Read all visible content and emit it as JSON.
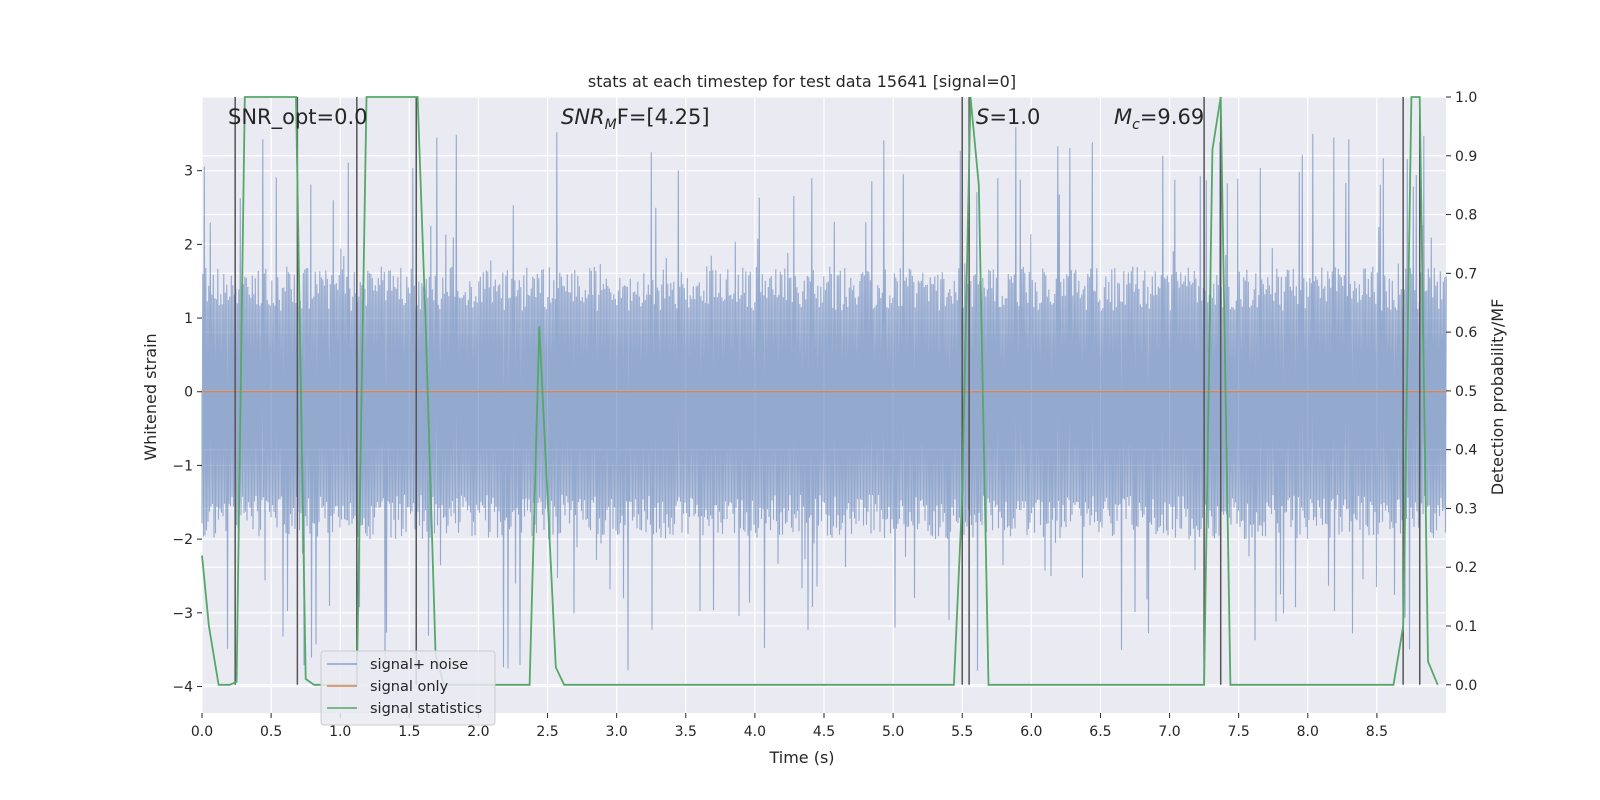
{
  "chart_data": {
    "type": "line",
    "title": "stats at each timestep for test data 15641 [signal=0]",
    "xlabel": "Time (s)",
    "ylabel": "Whitened strain",
    "y2label": "Detection probability/MF",
    "xlim": [
      0.0,
      9.0
    ],
    "ylim": [
      -4.36,
      4.0
    ],
    "y2lim": [
      -0.048,
      1.0
    ],
    "x_ticks": [
      "0.0",
      "0.5",
      "1.0",
      "1.5",
      "2.0",
      "2.5",
      "3.0",
      "3.5",
      "4.0",
      "4.5",
      "5.0",
      "5.5",
      "6.0",
      "6.5",
      "7.0",
      "7.5",
      "8.0",
      "8.5"
    ],
    "y_ticks": [
      "3",
      "2",
      "1",
      "0",
      "−1",
      "−2",
      "−3",
      "−4"
    ],
    "y2_ticks": [
      "1.0",
      "0.9",
      "0.8",
      "0.7",
      "0.6",
      "0.5",
      "0.4",
      "0.3",
      "0.2",
      "0.1",
      "0.0"
    ],
    "legend_position": "lower-left",
    "annotations": {
      "snr_opt": "SNR_opt=0.0",
      "snr_mf_sym": "SNR",
      "snr_mf_sub": "M",
      "snr_mf_tail": "F=[4.25]",
      "s_sym": "S",
      "s_tail": "=1.0",
      "mc_sym": "M",
      "mc_sub": "c",
      "mc_tail": "=9.69"
    },
    "series": [
      {
        "name": "signal+ noise",
        "color": "#4c72b0",
        "style": "noise band",
        "typical_range": [
          -1.7,
          1.4
        ],
        "peak_range": [
          -3.8,
          3.6
        ]
      },
      {
        "name": "signal only",
        "color": "#dd8452",
        "x": [
          0.0,
          9.0
        ],
        "y": [
          0.0,
          0.0
        ]
      },
      {
        "name": "signal statistics",
        "color": "#55a868",
        "axis": "right",
        "x": [
          0.0,
          0.05,
          0.12,
          0.2,
          0.25,
          0.31,
          0.44,
          0.5,
          0.56,
          0.62,
          0.68,
          0.75,
          0.81,
          0.87,
          0.94,
          1.0,
          1.06,
          1.12,
          1.19,
          1.25,
          1.31,
          1.37,
          1.44,
          1.5,
          1.56,
          1.62,
          1.69,
          1.75,
          1.87,
          2.0,
          2.12,
          2.25,
          2.37,
          2.44,
          2.56,
          2.62,
          2.75,
          3.0,
          3.5,
          4.0,
          4.5,
          5.0,
          5.44,
          5.5,
          5.56,
          5.62,
          5.69,
          5.75,
          6.0,
          6.5,
          7.0,
          7.25,
          7.31,
          7.37,
          7.44,
          7.5,
          8.0,
          8.5,
          8.62,
          8.69,
          8.75,
          8.81,
          8.87,
          8.94
        ],
        "y": [
          0.22,
          0.1,
          0.0,
          0.0,
          0.005,
          1.0,
          1.0,
          1.0,
          1.0,
          1.0,
          1.0,
          0.01,
          0.0,
          0.0,
          0.0,
          0.0,
          0.0,
          0.0,
          1.0,
          1.0,
          1.0,
          1.0,
          1.0,
          1.0,
          1.0,
          0.6,
          0.05,
          0.0,
          0.0,
          0.0,
          0.0,
          0.0,
          0.0,
          0.61,
          0.03,
          0.0,
          0.0,
          0.0,
          0.0,
          0.0,
          0.0,
          0.0,
          0.0,
          0.32,
          1.0,
          0.85,
          0.0,
          0.0,
          0.0,
          0.0,
          0.0,
          0.0,
          0.91,
          1.0,
          0.0,
          0.0,
          0.0,
          0.0,
          0.0,
          0.1,
          1.0,
          1.0,
          0.04,
          0.0
        ]
      },
      {
        "name": "event markers",
        "color": "#555555",
        "style": "vlines",
        "x": [
          0.24,
          0.69,
          1.12,
          1.55,
          5.5,
          5.55,
          7.25,
          7.37,
          8.69,
          8.81
        ]
      }
    ]
  }
}
